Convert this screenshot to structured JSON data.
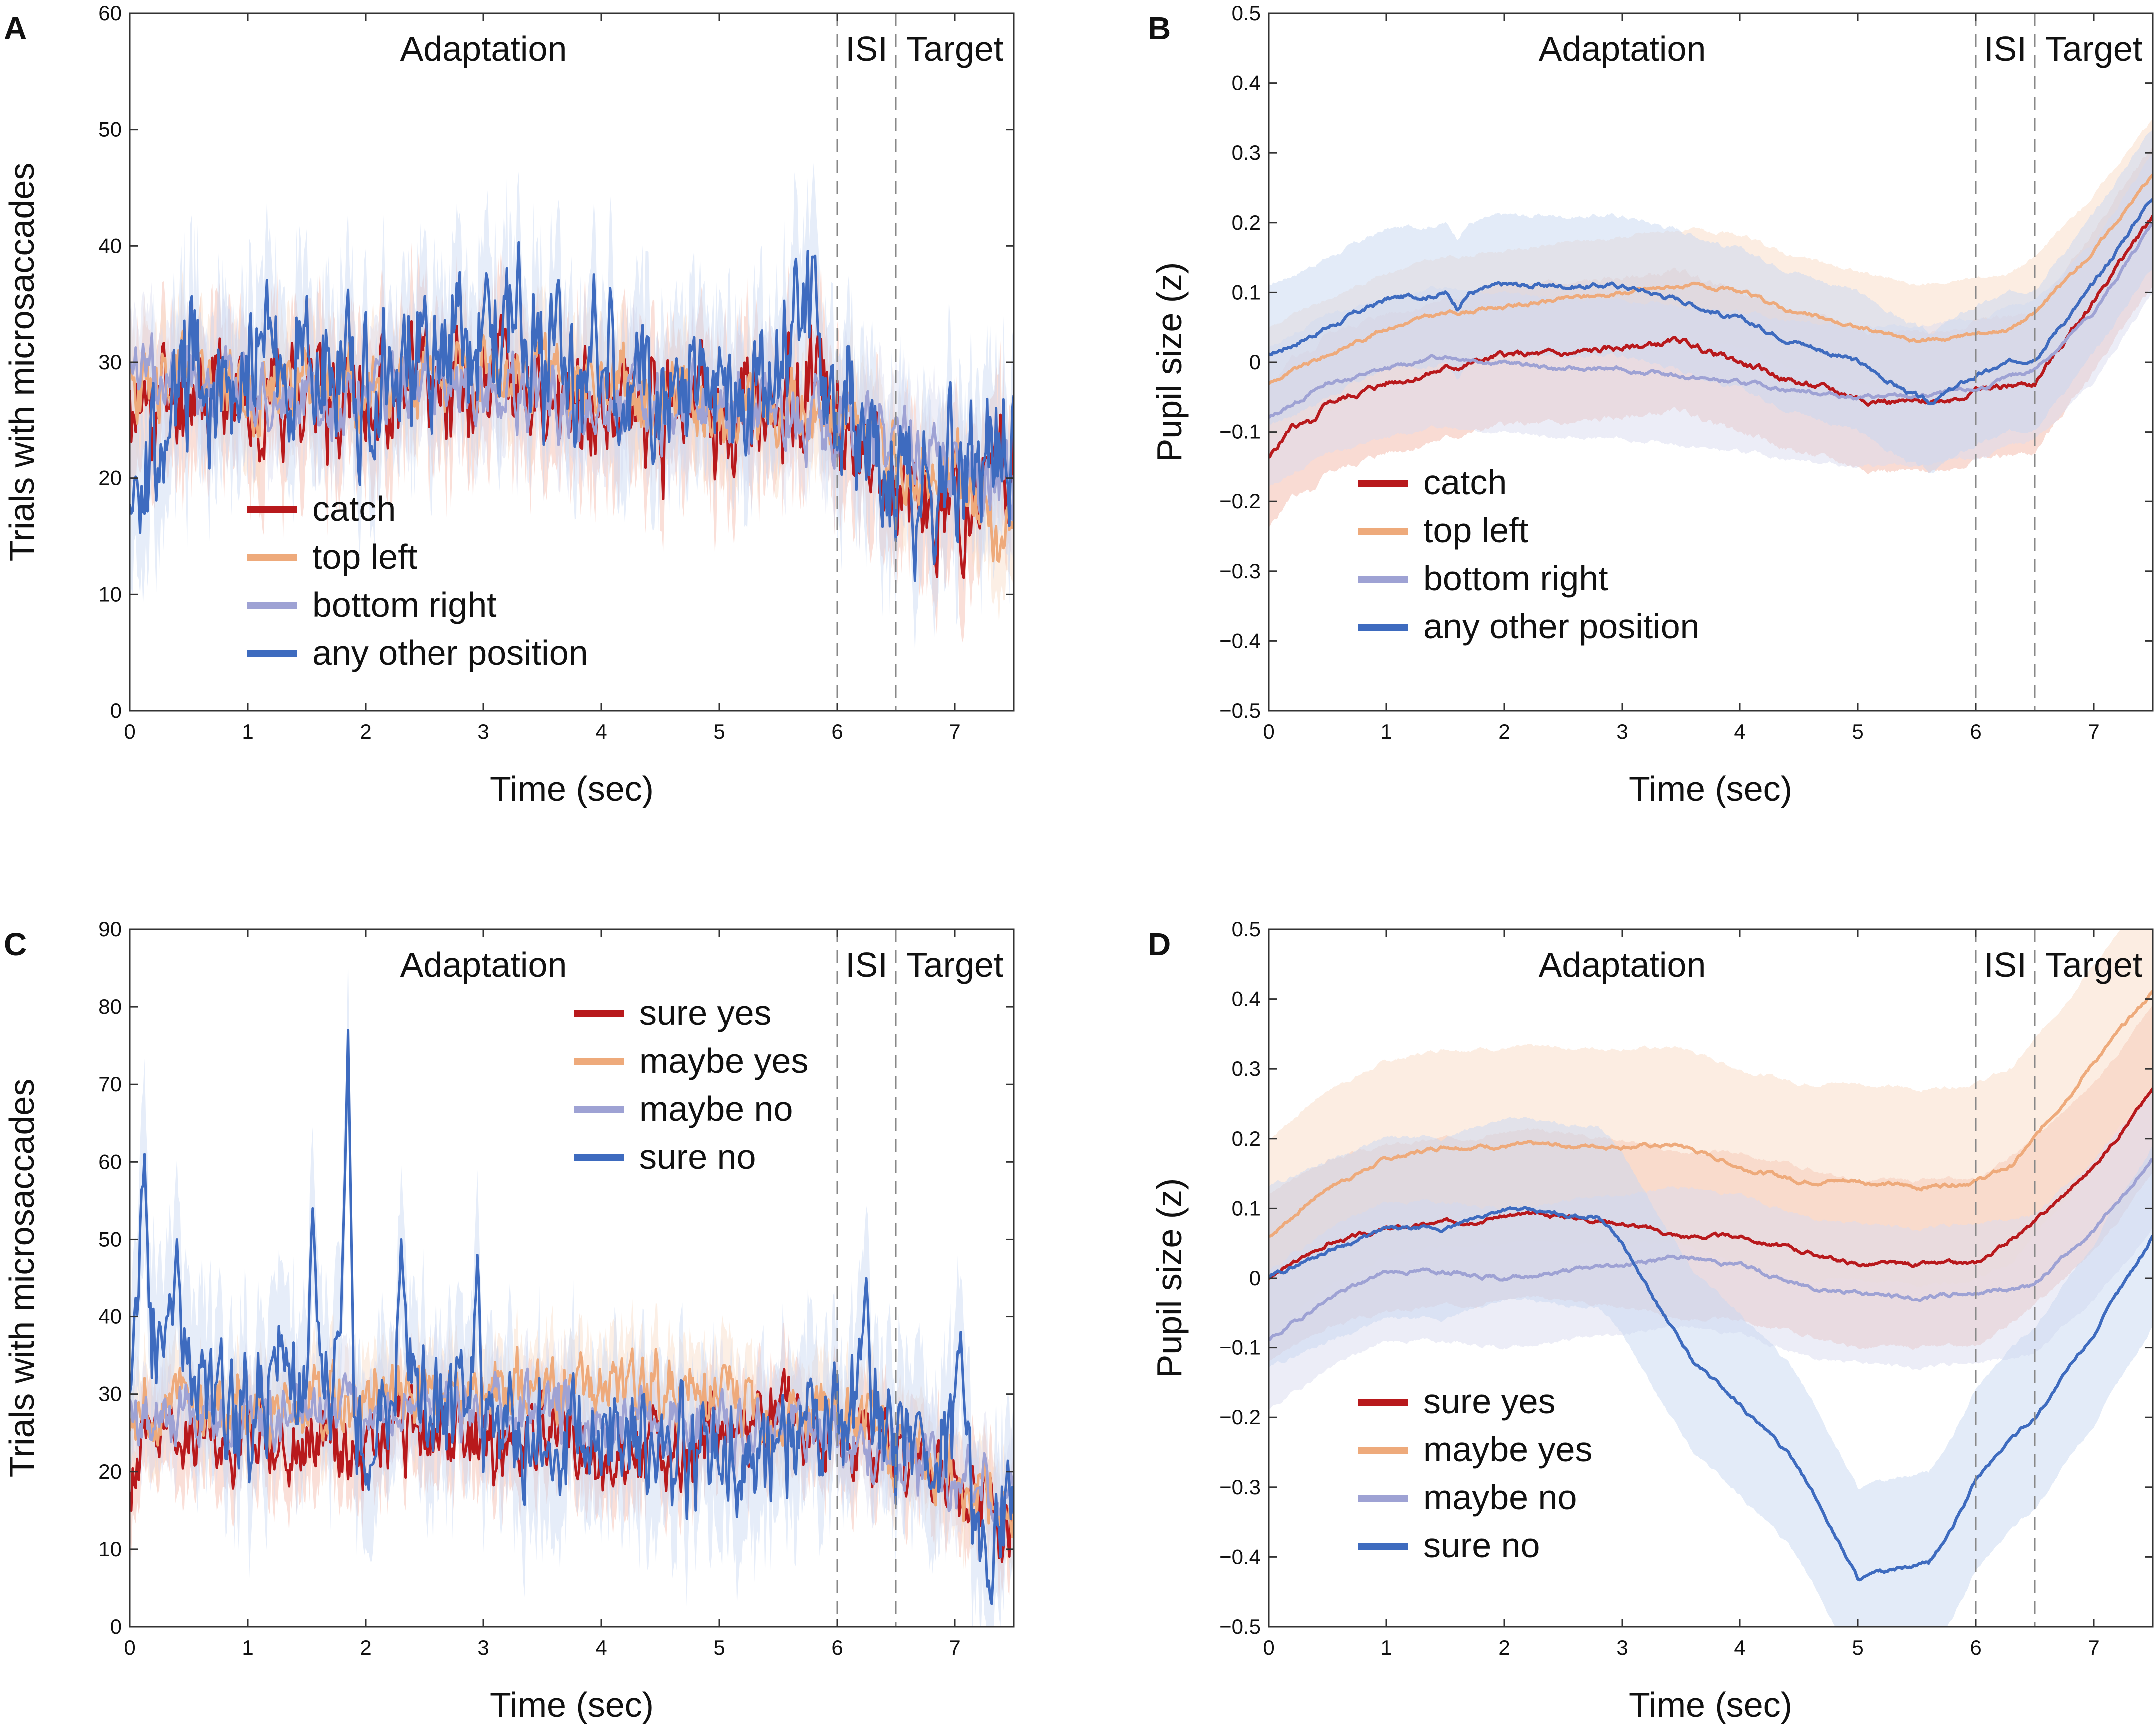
{
  "colors": {
    "red": "#b8191c",
    "orange": "#eeaa7b",
    "lavender": "#9ea2d4",
    "blue": "#3e6bbf",
    "red_band": "#f3b7a8",
    "orange_band": "#f9dcc6",
    "lavender_band": "#d9dcf0",
    "blue_band": "#c8d8f2"
  },
  "chart_data": [
    {
      "panel": "A",
      "type": "line",
      "xlabel": "Time (sec)",
      "ylabel": "Trials with microsaccades",
      "xlim": [
        0,
        7.5
      ],
      "ylim": [
        0,
        60
      ],
      "xticks": [
        0,
        1,
        2,
        3,
        4,
        5,
        6,
        7
      ],
      "yticks": [
        0,
        10,
        20,
        30,
        40,
        50,
        60
      ],
      "phase_markers": [
        6,
        6.5
      ],
      "phase_labels": {
        "adaptation": "Adaptation",
        "isi": "ISI",
        "target": "Target"
      },
      "legend": [
        "catch",
        "top left",
        "bottom right",
        "any other position"
      ],
      "noise": "high",
      "series": [
        {
          "name": "catch",
          "color": "red",
          "band": 5,
          "amp": 3.8,
          "seed": 11,
          "x": [
            0,
            0.5,
            1,
            1.5,
            2,
            2.5,
            3,
            3.5,
            4,
            4.5,
            5,
            5.5,
            6,
            6.3,
            6.5,
            6.8,
            7,
            7.5
          ],
          "y": [
            25,
            28,
            27,
            28,
            27,
            28,
            29,
            27,
            27,
            25,
            26,
            27,
            27,
            22,
            18,
            17,
            19,
            20
          ]
        },
        {
          "name": "top left",
          "color": "orange",
          "band": 4,
          "amp": 2.6,
          "seed": 23,
          "x": [
            0,
            0.5,
            1,
            1.5,
            2,
            2.5,
            3,
            3.5,
            4,
            4.5,
            5,
            5.5,
            6,
            6.3,
            6.5,
            7,
            7.5
          ],
          "y": [
            27,
            29,
            28,
            28,
            28,
            29,
            30,
            29,
            28,
            27,
            26,
            25,
            26,
            24,
            22,
            20,
            15
          ]
        },
        {
          "name": "bottom right",
          "color": "lavender",
          "band": 4,
          "amp": 2.6,
          "seed": 37,
          "x": [
            0,
            0.5,
            1,
            1.5,
            2,
            2.5,
            3,
            3.5,
            4,
            4.5,
            5,
            5.5,
            6,
            6.5,
            7,
            7.5
          ],
          "y": [
            28,
            29,
            28,
            27,
            27,
            28,
            28,
            27,
            27,
            26,
            25,
            25,
            25,
            23,
            21,
            19
          ]
        },
        {
          "name": "any other position",
          "color": "blue",
          "band": 6,
          "amp": 5,
          "seed": 53,
          "x": [
            0,
            0.2,
            0.5,
            1,
            1.5,
            2,
            2.5,
            3,
            3.3,
            3.5,
            4,
            4.5,
            5,
            5.5,
            5.7,
            6,
            6.5,
            7,
            7.5
          ],
          "y": [
            22,
            20,
            29,
            30,
            29,
            29,
            30,
            34,
            35,
            29,
            30,
            27,
            27,
            28,
            36,
            27,
            22,
            19,
            22
          ]
        }
      ]
    },
    {
      "panel": "B",
      "type": "line",
      "xlabel": "Time (sec)",
      "ylabel": "Pupil size (z)",
      "xlim": [
        0,
        7.5
      ],
      "ylim": [
        -0.5,
        0.5
      ],
      "xticks": [
        0,
        1,
        2,
        3,
        4,
        5,
        6,
        7
      ],
      "yticks": [
        -0.5,
        -0.4,
        -0.3,
        -0.2,
        -0.1,
        0,
        0.1,
        0.2,
        0.3,
        0.4,
        0.5
      ],
      "phase_markers": [
        6,
        6.5
      ],
      "phase_labels": {
        "adaptation": "Adaptation",
        "isi": "ISI",
        "target": "Target"
      },
      "legend": [
        "catch",
        "top left",
        "bottom right",
        "any other position"
      ],
      "noise": "low",
      "series": [
        {
          "name": "catch",
          "color": "red",
          "band": 0.1,
          "amp": 0.006,
          "seed": 5,
          "x": [
            0,
            0.2,
            0.4,
            0.5,
            1,
            1.5,
            2,
            2.5,
            3,
            3.5,
            4,
            4.5,
            5,
            5.5,
            5.8,
            6,
            6.5,
            7,
            7.5
          ],
          "y": [
            -0.14,
            -0.09,
            -0.09,
            -0.06,
            -0.03,
            -0.01,
            0.01,
            0.01,
            0.02,
            0.03,
            0.0,
            -0.03,
            -0.05,
            -0.06,
            -0.05,
            -0.04,
            -0.03,
            0.09,
            0.21
          ]
        },
        {
          "name": "top left",
          "color": "orange",
          "band": 0.08,
          "amp": 0.004,
          "seed": 9,
          "x": [
            0,
            0.5,
            1,
            1.5,
            2,
            2.5,
            3,
            3.5,
            4,
            4.5,
            5,
            5.5,
            6,
            6.3,
            6.5,
            7,
            7.5
          ],
          "y": [
            -0.03,
            0.01,
            0.05,
            0.07,
            0.08,
            0.09,
            0.1,
            0.11,
            0.1,
            0.07,
            0.05,
            0.03,
            0.04,
            0.05,
            0.07,
            0.16,
            0.27
          ]
        },
        {
          "name": "bottom right",
          "color": "lavender",
          "band": 0.1,
          "amp": 0.004,
          "seed": 13,
          "x": [
            0,
            0.5,
            1,
            1.5,
            2,
            2.5,
            3,
            3.5,
            4,
            4.5,
            5,
            5.5,
            6,
            6.5,
            7,
            7.5
          ],
          "y": [
            -0.08,
            -0.03,
            -0.01,
            0.01,
            0.0,
            -0.01,
            -0.01,
            -0.02,
            -0.03,
            -0.04,
            -0.05,
            -0.05,
            -0.04,
            -0.01,
            0.07,
            0.2
          ]
        },
        {
          "name": "any other position",
          "color": "blue",
          "band": 0.1,
          "amp": 0.005,
          "seed": 17,
          "x": [
            0,
            0.5,
            1,
            1.5,
            1.6,
            1.7,
            2,
            2.5,
            3,
            3.5,
            4,
            4.5,
            5,
            5.3,
            5.6,
            6,
            6.5,
            7,
            7.5
          ],
          "y": [
            0.01,
            0.05,
            0.09,
            0.1,
            0.08,
            0.1,
            0.11,
            0.11,
            0.11,
            0.09,
            0.06,
            0.03,
            0.0,
            -0.03,
            -0.06,
            -0.02,
            0.01,
            0.11,
            0.24
          ]
        }
      ]
    },
    {
      "panel": "C",
      "type": "line",
      "xlabel": "Time (sec)",
      "ylabel": "Trials with microsaccades",
      "xlim": [
        0,
        7.5
      ],
      "ylim": [
        0,
        90
      ],
      "xticks": [
        0,
        1,
        2,
        3,
        4,
        5,
        6,
        7
      ],
      "yticks": [
        0,
        10,
        20,
        30,
        40,
        50,
        60,
        70,
        80,
        90
      ],
      "phase_markers": [
        6,
        6.5
      ],
      "phase_labels": {
        "adaptation": "Adaptation",
        "isi": "ISI",
        "target": "Target"
      },
      "legend": [
        "sure yes",
        "maybe yes",
        "maybe no",
        "sure no"
      ],
      "noise": "high",
      "series": [
        {
          "name": "sure yes",
          "color": "red",
          "band": 5,
          "amp": 4,
          "seed": 71,
          "x": [
            0,
            0.5,
            1,
            1.5,
            2,
            2.5,
            3,
            3.5,
            4,
            4.5,
            5,
            5.5,
            6,
            6.5,
            7,
            7.5
          ],
          "y": [
            22,
            25,
            24,
            25,
            24,
            25,
            24,
            25,
            24,
            22,
            24,
            26,
            25,
            22,
            18,
            14
          ]
        },
        {
          "name": "maybe yes",
          "color": "orange",
          "band": 5,
          "amp": 3.6,
          "seed": 83,
          "x": [
            0,
            0.5,
            1,
            1.5,
            2,
            2.5,
            3,
            3.5,
            4,
            4.5,
            5,
            5.5,
            6,
            6.5,
            7,
            7.5
          ],
          "y": [
            28,
            29,
            28,
            28,
            29,
            29,
            30,
            31,
            31,
            30,
            30,
            28,
            27,
            24,
            20,
            15
          ]
        },
        {
          "name": "maybe no",
          "color": "lavender",
          "band": 5,
          "amp": 3.2,
          "seed": 97,
          "x": [
            0,
            0.5,
            1,
            1.5,
            2,
            2.5,
            3,
            3.5,
            4,
            4.5,
            5,
            5.5,
            6,
            6.5,
            7,
            7.5
          ],
          "y": [
            27,
            28,
            27,
            27,
            27,
            28,
            28,
            28,
            27,
            26,
            26,
            26,
            25,
            22,
            19,
            17
          ]
        },
        {
          "name": "sure no",
          "color": "blue",
          "band": 9,
          "amp": 6,
          "seed": 101,
          "x": [
            0,
            0.1,
            0.2,
            0.35,
            0.5,
            1,
            1.3,
            1.5,
            1.8,
            2,
            2.3,
            2.6,
            3,
            3.5,
            4,
            4.5,
            5,
            5.5,
            6,
            6.3,
            6.5,
            7,
            7.2,
            7.5
          ],
          "y": [
            33,
            45,
            38,
            36,
            32,
            26,
            35,
            30,
            34,
            24,
            32,
            28,
            27,
            25,
            26,
            22,
            24,
            22,
            26,
            28,
            22,
            26,
            12,
            12
          ],
          "spikes": [
            [
              0.12,
              61
            ],
            [
              0.4,
              50
            ],
            [
              1.55,
              54
            ],
            [
              1.85,
              77
            ],
            [
              2.3,
              50
            ],
            [
              2.95,
              48
            ],
            [
              6.25,
              45
            ],
            [
              7.05,
              38
            ]
          ]
        }
      ]
    },
    {
      "panel": "D",
      "type": "line",
      "xlabel": "Time (sec)",
      "ylabel": "Pupil size (z)",
      "xlim": [
        0,
        7.5
      ],
      "ylim": [
        -0.5,
        0.5
      ],
      "xticks": [
        0,
        1,
        2,
        3,
        4,
        5,
        6,
        7
      ],
      "yticks": [
        -0.5,
        -0.4,
        -0.3,
        -0.2,
        -0.1,
        0,
        0.1,
        0.2,
        0.3,
        0.4,
        0.5
      ],
      "phase_markers": [
        6,
        6.5
      ],
      "phase_labels": {
        "adaptation": "Adaptation",
        "isi": "ISI",
        "target": "Target"
      },
      "legend": [
        "sure yes",
        "maybe yes",
        "maybe no",
        "sure no"
      ],
      "noise": "low",
      "series": [
        {
          "name": "sure yes",
          "color": "red",
          "band": 0.12,
          "amp": 0.004,
          "seed": 3,
          "x": [
            0,
            0.5,
            1,
            1.5,
            2,
            2.5,
            3,
            3.5,
            4,
            4.5,
            5,
            5.5,
            6,
            6.5,
            7,
            7.5
          ],
          "y": [
            0.0,
            0.05,
            0.07,
            0.08,
            0.09,
            0.09,
            0.08,
            0.06,
            0.06,
            0.04,
            0.02,
            0.02,
            0.02,
            0.08,
            0.16,
            0.27
          ]
        },
        {
          "name": "maybe yes",
          "color": "orange",
          "band": 0.14,
          "amp": 0.004,
          "seed": 7,
          "x": [
            0,
            0.5,
            1,
            1.5,
            2,
            2.5,
            3,
            3.5,
            4,
            4.5,
            5,
            5.5,
            6,
            6.3,
            6.5,
            7,
            7.5
          ],
          "y": [
            0.06,
            0.13,
            0.17,
            0.19,
            0.19,
            0.19,
            0.19,
            0.19,
            0.16,
            0.14,
            0.14,
            0.13,
            0.14,
            0.16,
            0.2,
            0.31,
            0.41
          ]
        },
        {
          "name": "maybe no",
          "color": "lavender",
          "band": 0.1,
          "amp": 0.004,
          "seed": 19,
          "x": [
            0,
            0.5,
            1,
            1.5,
            2,
            2.5,
            3,
            3.5,
            4,
            4.5,
            5,
            5.5,
            6,
            6.5,
            7,
            7.5
          ],
          "y": [
            -0.09,
            -0.03,
            0.01,
            0.01,
            0.0,
            0.01,
            0.02,
            0.03,
            0.02,
            -0.01,
            -0.02,
            -0.03,
            -0.02,
            -0.01,
            0.07,
            0.17
          ]
        },
        {
          "name": "sure no",
          "color": "blue",
          "band": 0.13,
          "amp": 0.004,
          "seed": 29,
          "x": [
            0,
            0.5,
            1,
            1.5,
            2,
            2.5,
            2.8,
            3,
            3.3,
            3.6,
            4,
            4.5,
            5,
            5.3,
            5.6,
            5.8,
            6,
            6.3,
            6.5,
            7,
            7.5
          ],
          "y": [
            0.0,
            0.04,
            0.07,
            0.07,
            0.1,
            0.09,
            0.09,
            0.05,
            -0.04,
            -0.12,
            -0.18,
            -0.27,
            -0.43,
            -0.42,
            -0.41,
            -0.36,
            -0.29,
            -0.23,
            -0.2,
            -0.08,
            0.06
          ]
        }
      ]
    }
  ]
}
